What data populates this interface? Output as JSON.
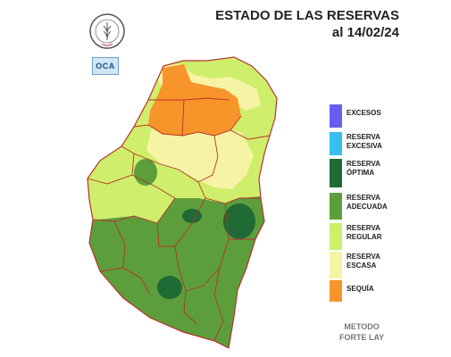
{
  "header": {
    "title_line1": "ESTADO DE LAS RESERVAS",
    "title_line2": "al 14/02/24"
  },
  "logos": {
    "seal_text": "BOLSA DE CEREALES",
    "oca_text": "OCA"
  },
  "colors": {
    "excesos": "#6a5cf0",
    "excesiva": "#36c0ee",
    "optima": "#1f6a35",
    "adecuada": "#5c9e3c",
    "regular": "#cfee6c",
    "escasa": "#f7f3a4",
    "sequia": "#f7942a",
    "border": "#b8322a"
  },
  "legend": [
    {
      "key": "excesos",
      "line1": "EXCESOS",
      "line2": ""
    },
    {
      "key": "excesiva",
      "line1": "RESERVA",
      "line2": "EXCESIVA"
    },
    {
      "key": "optima",
      "line1": "RESERVA",
      "line2": "ÓPTIMA"
    },
    {
      "key": "adecuada",
      "line1": "RESERVA",
      "line2": "ADECUADA"
    },
    {
      "key": "regular",
      "line1": "RESERVA",
      "line2": "REGULAR"
    },
    {
      "key": "escasa",
      "line1": "RESERVA",
      "line2": "ESCASA"
    },
    {
      "key": "sequia",
      "line1": "SEQUÍA",
      "line2": ""
    }
  ],
  "footer": {
    "method_line1": "METODO",
    "method_line2": "FORTE LAY"
  }
}
